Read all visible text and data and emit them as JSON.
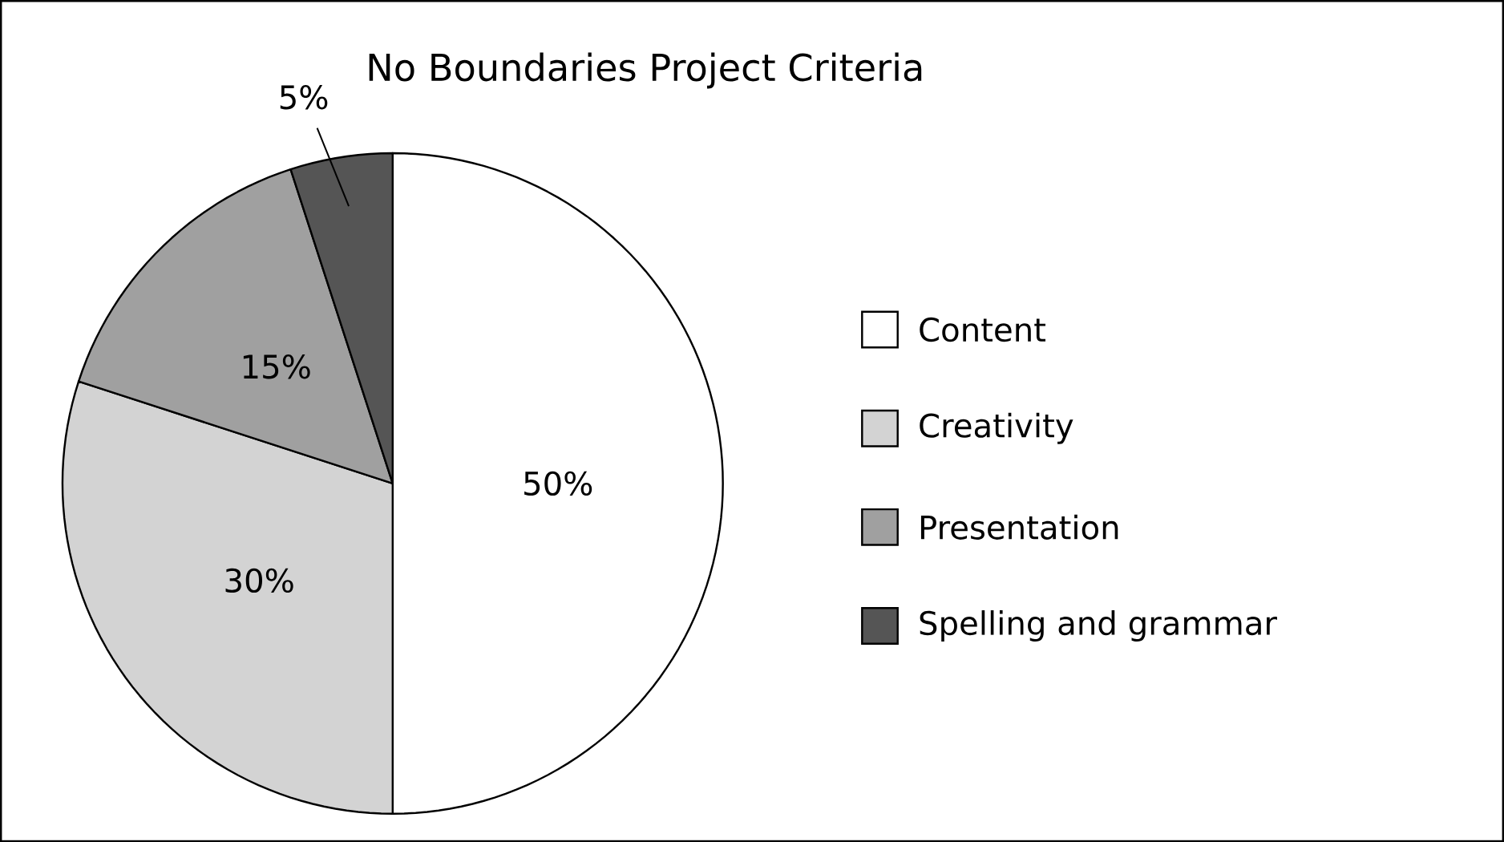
{
  "chart_data": {
    "type": "pie",
    "title": "No Boundaries Project Criteria",
    "categories": [
      "Content",
      "Creativity",
      "Presentation",
      "Spelling and grammar"
    ],
    "values": [
      50,
      30,
      15,
      5
    ],
    "colors": [
      "#ffffff",
      "#d3d3d3",
      "#a0a0a0",
      "#555555"
    ],
    "value_labels": [
      "50%",
      "30%",
      "15%",
      "5%"
    ],
    "legend": "right"
  }
}
